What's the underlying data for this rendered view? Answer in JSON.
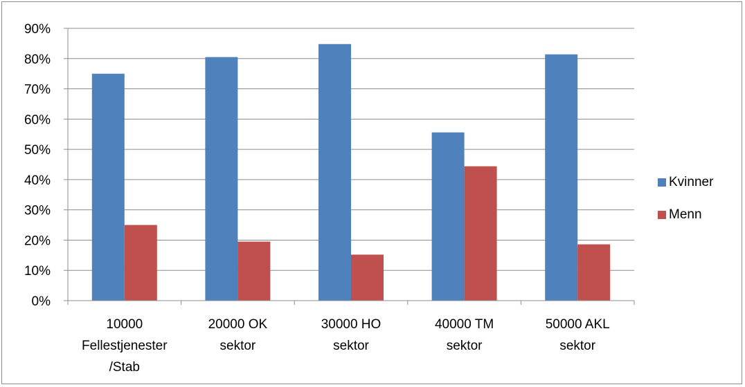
{
  "chart_data": {
    "type": "bar",
    "categories": [
      [
        "10000",
        "Fellestjenester",
        "/Stab"
      ],
      [
        "20000 OK",
        "sektor"
      ],
      [
        "30000 HO",
        "sektor"
      ],
      [
        "40000 TM",
        "sektor"
      ],
      [
        "50000 AKL",
        "sektor"
      ]
    ],
    "series": [
      {
        "name": "Kvinner",
        "color": "#4f81bd",
        "values": [
          75.0,
          80.5,
          84.8,
          55.6,
          81.4
        ]
      },
      {
        "name": "Menn",
        "color": "#c0504d",
        "values": [
          25.0,
          19.5,
          15.2,
          44.4,
          18.6
        ]
      }
    ],
    "ylim": [
      0,
      90
    ],
    "yticks": [
      "0%",
      "10%",
      "20%",
      "30%",
      "40%",
      "50%",
      "60%",
      "70%",
      "80%",
      "90%"
    ],
    "grid": true,
    "legend": "right",
    "title": "",
    "xlabel": "",
    "ylabel": ""
  }
}
